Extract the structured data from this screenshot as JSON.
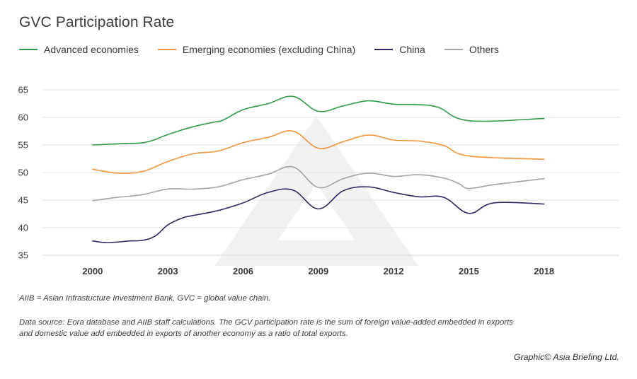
{
  "title": "GVC Participation Rate",
  "legend": [
    {
      "name": "Advanced economies",
      "color": "#2e9a47"
    },
    {
      "name": "Emerging economies (excluding China)",
      "color": "#f0943a"
    },
    {
      "name": "China",
      "color": "#2c2a63"
    },
    {
      "name": "Others",
      "color": "#a3a3a3"
    }
  ],
  "notes": {
    "abbrev": "AIIB = Asian Infrastucture Investment Bank, GVC = global value chain.",
    "source_line1": "Data source: Eora database and AIIB staff calculations. The GCV participation rate is the sum of foreign value-added embedded in exports",
    "source_line2": "and domestic value add embedded in exports of another economy as a ratio of total exports."
  },
  "credit": "Graphic© Asia Briefing Ltd.",
  "chart_data": {
    "type": "line",
    "title": "GVC Participation Rate",
    "xlabel": "",
    "ylabel": "",
    "xlim": [
      1998,
      2021
    ],
    "ylim": [
      35,
      65
    ],
    "x_ticks": [
      "2000",
      "2003",
      "2006",
      "2009",
      "2012",
      "2015",
      "2018"
    ],
    "y_ticks": [
      "35",
      "40",
      "45",
      "50",
      "55",
      "60",
      "65"
    ],
    "grid": true,
    "legend_position": "top",
    "series": [
      {
        "name": "Advanced economies",
        "color": "#2e9a47",
        "x": [
          2000,
          2001,
          2002,
          2002.5,
          2003,
          2004,
          2004.8,
          2005.2,
          2006,
          2007,
          2008,
          2009,
          2010,
          2011,
          2012,
          2013,
          2013.8,
          2015,
          2018
        ],
        "y": [
          55.0,
          55.2,
          55.4,
          56.0,
          56.9,
          58.3,
          59.1,
          59.5,
          61.4,
          62.5,
          63.8,
          61.1,
          62.1,
          63.0,
          62.4,
          62.3,
          61.8,
          59.4,
          59.8
        ]
      },
      {
        "name": "Emerging economies (excluding China)",
        "color": "#f0943a",
        "x": [
          2000,
          2001,
          2002,
          2003,
          2004,
          2005,
          2006,
          2007,
          2008,
          2009,
          2010,
          2011,
          2012,
          2013,
          2014,
          2015,
          2018
        ],
        "y": [
          50.6,
          49.9,
          50.2,
          52.0,
          53.4,
          53.9,
          55.4,
          56.4,
          57.5,
          54.4,
          55.6,
          56.8,
          55.9,
          55.7,
          54.9,
          53.0,
          52.4
        ]
      },
      {
        "name": "China",
        "color": "#2c2a63",
        "x": [
          2000,
          2000.5,
          2001,
          2001.5,
          2002,
          2002.5,
          2003,
          2003.6,
          2004,
          2005,
          2006,
          2007,
          2008,
          2009,
          2010,
          2011,
          2012,
          2013,
          2014,
          2015,
          2016,
          2018
        ],
        "y": [
          37.6,
          37.3,
          37.4,
          37.6,
          37.7,
          38.5,
          40.5,
          41.8,
          42.2,
          43.1,
          44.5,
          46.4,
          46.8,
          43.4,
          46.7,
          47.4,
          46.4,
          45.6,
          45.5,
          42.6,
          44.5,
          44.3
        ]
      },
      {
        "name": "Others",
        "color": "#a3a3a3",
        "x": [
          2000,
          2001,
          2002,
          2003,
          2004,
          2005,
          2006,
          2007,
          2008,
          2009,
          2010,
          2011,
          2012,
          2013,
          2014,
          2014.6,
          2015,
          2016,
          2018
        ],
        "y": [
          44.9,
          45.5,
          46.0,
          47.0,
          47.0,
          47.4,
          48.7,
          49.7,
          51.0,
          47.3,
          48.9,
          49.9,
          49.3,
          49.6,
          49.0,
          48.0,
          47.1,
          47.8,
          48.9
        ]
      }
    ]
  }
}
